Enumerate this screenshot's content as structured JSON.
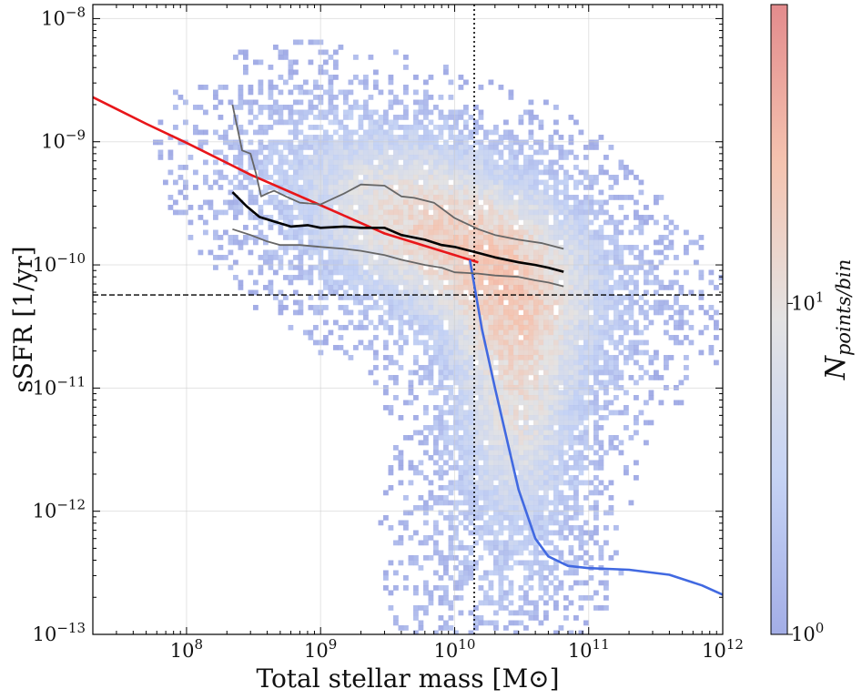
{
  "chart_data": {
    "type": "heatmap",
    "xlabel": "Total stellar mass [M⊙]",
    "ylabel": "sSFR [1/yr]",
    "x_scale": "log",
    "y_scale": "log",
    "xlim": [
      20000000,
      1000000000000
    ],
    "ylim": [
      1e-13,
      1.3e-08
    ],
    "x_ticks": [
      {
        "value": 100000000,
        "label": "10^8"
      },
      {
        "value": 1000000000,
        "label": "10^9"
      },
      {
        "value": 10000000000,
        "label": "10^10"
      },
      {
        "value": 100000000000,
        "label": "10^11"
      },
      {
        "value": 1000000000000,
        "label": "10^12"
      }
    ],
    "y_ticks": [
      {
        "value": 1e-13,
        "label": "10^−13"
      },
      {
        "value": 1e-12,
        "label": "10^−12"
      },
      {
        "value": 1e-11,
        "label": "10^−11"
      },
      {
        "value": 1e-10,
        "label": "10^−10"
      },
      {
        "value": 1e-09,
        "label": "10^−9"
      },
      {
        "value": 1e-08,
        "label": "10^−8"
      }
    ],
    "grid": true,
    "colorbar": {
      "label": "N_points/bin",
      "scale": "log",
      "range": [
        1,
        80
      ],
      "colormap": [
        "#8c99e0",
        "#b7c8f2",
        "#dddcdc",
        "#f2b49c",
        "#dc6e70"
      ],
      "ticks": [
        {
          "value": 1,
          "label": "10^0"
        },
        {
          "value": 10,
          "label": "10^1"
        }
      ]
    },
    "reference_lines": [
      {
        "orientation": "horizontal",
        "y": 5.7e-11,
        "style": "dashed",
        "color": "#000000"
      },
      {
        "orientation": "vertical",
        "x": 14000000000,
        "style": "dotted",
        "color": "#000000"
      }
    ],
    "series": [
      {
        "type": "line",
        "color": "#e8161a",
        "x": [
          20000000,
          50000000,
          100000000,
          300000000,
          1000000000,
          3000000000,
          10000000000,
          15000000000
        ],
        "y": [
          2.3e-09,
          1.4e-09,
          9.8e-10,
          5.4e-10,
          3.05e-10,
          1.8e-10,
          1.2e-10,
          1.05e-10
        ]
      },
      {
        "type": "line",
        "color": "#4169e1",
        "x": [
          13000000000,
          16000000000,
          20000000000,
          25000000000,
          30000000000,
          40000000000,
          50000000000,
          70000000000,
          100000000000,
          200000000000,
          400000000000,
          700000000000,
          1000000000000
        ],
        "y": [
          1.1e-10,
          3e-11,
          1e-11,
          3.5e-12,
          1.5e-12,
          6e-13,
          4.3e-13,
          3.6e-13,
          3.45e-13,
          3.35e-13,
          3.05e-13,
          2.5e-13,
          2.1e-13
        ]
      },
      {
        "type": "line",
        "color": "#000000",
        "x": [
          220000000,
          280000000,
          350000000,
          450000000,
          600000000,
          800000000,
          1000000000,
          1500000000,
          2000000000,
          3000000000,
          4000000000,
          6000000000,
          8000000000,
          10000000000,
          15000000000,
          20000000000,
          30000000000,
          40000000000,
          50000000000,
          65000000000
        ],
        "y": [
          3.9e-10,
          3e-10,
          2.45e-10,
          2.25e-10,
          2.05e-10,
          2.1e-10,
          2e-10,
          2.05e-10,
          2e-10,
          2e-10,
          1.75e-10,
          1.6e-10,
          1.45e-10,
          1.4e-10,
          1.25e-10,
          1.15e-10,
          1.05e-10,
          1e-10,
          9.5e-11,
          8.8e-11
        ]
      },
      {
        "type": "line",
        "color": "#666666",
        "x": [
          220000000,
          260000000,
          300000000,
          330000000,
          360000000,
          400000000,
          450000000,
          550000000,
          700000000,
          1000000000,
          1500000000,
          2000000000,
          3000000000,
          4000000000,
          5000000000,
          7000000000,
          10000000000,
          15000000000,
          20000000000,
          30000000000,
          45000000000,
          65000000000
        ],
        "y": [
          2e-09,
          8.5e-10,
          8e-10,
          5.5e-10,
          3.6e-10,
          3.8e-10,
          4e-10,
          3.6e-10,
          3.2e-10,
          3.1e-10,
          3.8e-10,
          4.5e-10,
          4.4e-10,
          3.6e-10,
          3.5e-10,
          3.2e-10,
          2.4e-10,
          1.95e-10,
          1.75e-10,
          1.6e-10,
          1.5e-10,
          1.35e-10
        ]
      },
      {
        "type": "line",
        "color": "#666666",
        "x": [
          220000000,
          300000000,
          400000000,
          500000000,
          700000000,
          1000000000,
          1500000000,
          2000000000,
          3000000000,
          4000000000,
          6000000000,
          8000000000,
          10000000000,
          15000000000,
          20000000000,
          30000000000,
          40000000000,
          50000000000,
          65000000000
        ],
        "y": [
          1.95e-10,
          1.75e-10,
          1.55e-10,
          1.45e-10,
          1.45e-10,
          1.4e-10,
          1.35e-10,
          1.3e-10,
          1.2e-10,
          1.1e-10,
          1e-10,
          9.5e-11,
          8.7e-11,
          8.5e-11,
          8.2e-11,
          8e-11,
          7.5e-11,
          7.2e-11,
          6.7e-11
        ]
      }
    ]
  }
}
